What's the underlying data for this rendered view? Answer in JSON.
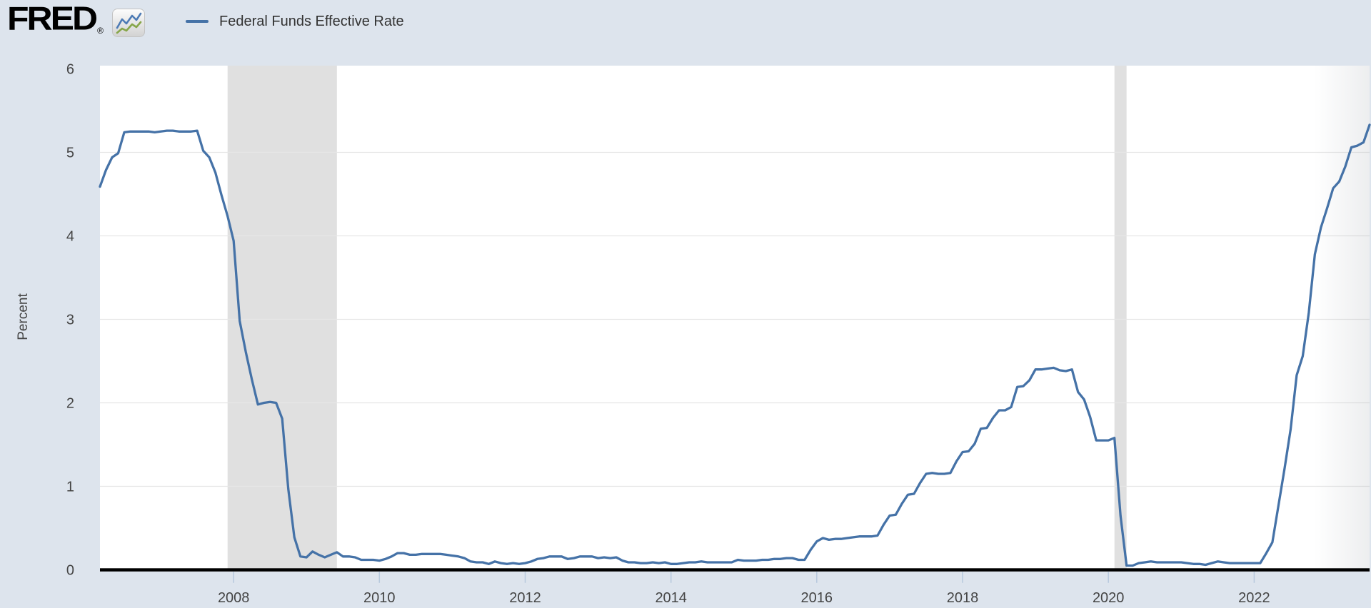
{
  "header": {
    "logo_text": "FRED",
    "registered_mark": "®"
  },
  "legend": {
    "series_label": "Federal Funds Effective Rate",
    "swatch_color": "#4572a7"
  },
  "y_axis_title": "Percent",
  "colors": {
    "page_background": "#dde4ed",
    "plot_background": "#ffffff",
    "gridline": "#e6e6e6",
    "recession_band": "#e0e0e0",
    "series_line": "#4572a7",
    "zero_axis": "#000000",
    "axis_tick": "#b7c9dd",
    "axis_label": "#444444",
    "logo_icon_blue": "#4d7bb5",
    "logo_icon_green": "#86a649"
  },
  "chart_data": {
    "type": "line",
    "title": "Federal Funds Effective Rate",
    "ylabel": "Percent",
    "xlabel": "",
    "ylim": [
      0,
      6
    ],
    "y_ticks": [
      0,
      1,
      2,
      3,
      4,
      5,
      6
    ],
    "x_tick_years": [
      2008,
      2010,
      2012,
      2014,
      2016,
      2018,
      2020,
      2022
    ],
    "x_range_decimal_years": [
      2006.1667,
      2023.5833
    ],
    "frequency": "monthly",
    "start": {
      "year": 2006,
      "month": 3
    },
    "end": {
      "year": 2023,
      "month": 8
    },
    "grid": "horizontal-only",
    "legend_position": "top-left",
    "recession_bands_decimal_years": [
      [
        2007.9167,
        2009.4167
      ],
      [
        2020.0833,
        2020.25
      ]
    ],
    "series": [
      {
        "name": "Federal Funds Effective Rate",
        "color": "#4572a7",
        "units": "Percent",
        "values": [
          4.59,
          4.79,
          4.94,
          4.99,
          5.24,
          5.25,
          5.25,
          5.25,
          5.25,
          5.24,
          5.25,
          5.26,
          5.26,
          5.25,
          5.25,
          5.25,
          5.26,
          5.02,
          4.94,
          4.76,
          4.49,
          4.24,
          3.94,
          2.98,
          2.61,
          2.28,
          1.98,
          2.0,
          2.01,
          2.0,
          1.81,
          0.97,
          0.39,
          0.16,
          0.15,
          0.22,
          0.18,
          0.15,
          0.18,
          0.21,
          0.16,
          0.16,
          0.15,
          0.12,
          0.12,
          0.12,
          0.11,
          0.13,
          0.16,
          0.2,
          0.2,
          0.18,
          0.18,
          0.19,
          0.19,
          0.19,
          0.19,
          0.18,
          0.17,
          0.16,
          0.14,
          0.1,
          0.09,
          0.09,
          0.07,
          0.1,
          0.08,
          0.07,
          0.08,
          0.07,
          0.08,
          0.1,
          0.13,
          0.14,
          0.16,
          0.16,
          0.16,
          0.13,
          0.14,
          0.16,
          0.16,
          0.16,
          0.14,
          0.15,
          0.14,
          0.15,
          0.11,
          0.09,
          0.09,
          0.08,
          0.08,
          0.09,
          0.08,
          0.09,
          0.07,
          0.07,
          0.08,
          0.09,
          0.09,
          0.1,
          0.09,
          0.09,
          0.09,
          0.09,
          0.09,
          0.12,
          0.11,
          0.11,
          0.11,
          0.12,
          0.12,
          0.13,
          0.13,
          0.14,
          0.14,
          0.12,
          0.12,
          0.24,
          0.34,
          0.38,
          0.36,
          0.37,
          0.37,
          0.38,
          0.39,
          0.4,
          0.4,
          0.4,
          0.41,
          0.54,
          0.65,
          0.66,
          0.79,
          0.9,
          0.91,
          1.04,
          1.15,
          1.16,
          1.15,
          1.15,
          1.16,
          1.3,
          1.41,
          1.42,
          1.51,
          1.69,
          1.7,
          1.82,
          1.91,
          1.91,
          1.95,
          2.19,
          2.2,
          2.27,
          2.4,
          2.4,
          2.41,
          2.42,
          2.39,
          2.38,
          2.4,
          2.13,
          2.04,
          1.83,
          1.55,
          1.55,
          1.55,
          1.58,
          0.65,
          0.05,
          0.05,
          0.08,
          0.09,
          0.1,
          0.09,
          0.09,
          0.09,
          0.09,
          0.09,
          0.08,
          0.07,
          0.07,
          0.06,
          0.08,
          0.1,
          0.09,
          0.08,
          0.08,
          0.08,
          0.08,
          0.08,
          0.08,
          0.2,
          0.33,
          0.77,
          1.21,
          1.68,
          2.33,
          2.56,
          3.08,
          3.78,
          4.1,
          4.33,
          4.57,
          4.65,
          4.83,
          5.06,
          5.08,
          5.12,
          5.33
        ]
      }
    ]
  }
}
